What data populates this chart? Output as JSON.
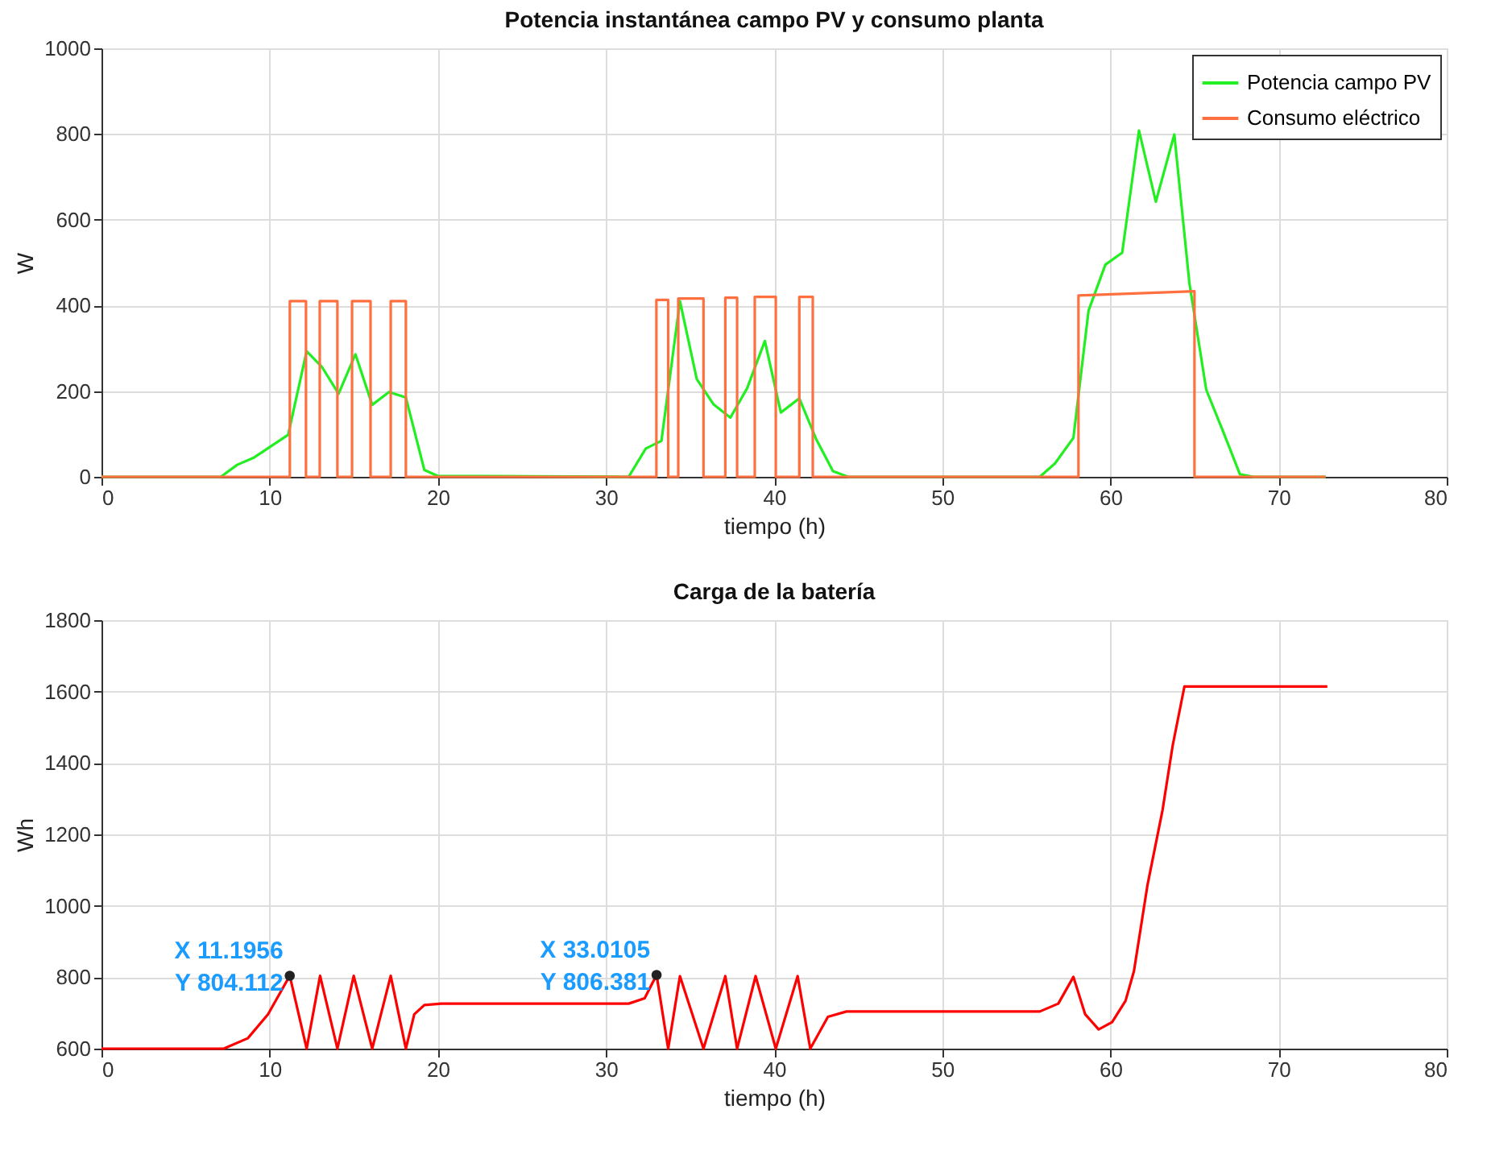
{
  "chart_data": [
    {
      "type": "line",
      "title": "Potencia instantánea campo PV y consumo planta",
      "xlabel": "tiempo (h)",
      "ylabel": "W",
      "xlim": [
        0,
        80
      ],
      "xticks": [
        0,
        10,
        20,
        30,
        40,
        50,
        60,
        70,
        80
      ],
      "ylim": [
        0,
        1000
      ],
      "yticks": [
        0,
        200,
        400,
        600,
        800,
        1000
      ],
      "grid": true,
      "legend": "top right",
      "line_style": "solid",
      "marker": "none",
      "series": [
        {
          "name": "Potencia campo PV",
          "color": "#22ee22",
          "x": [
            0,
            7.1,
            8.07,
            9.03,
            11.1,
            12.2,
            13.1,
            14.1,
            15.1,
            16.1,
            17.1,
            18.1,
            19.2,
            20.0,
            31.35,
            32.37,
            33.3,
            34.4,
            35.4,
            36.4,
            37.4,
            38.4,
            39.45,
            40.4,
            41.5,
            42.5,
            43.5,
            44.4,
            55.8,
            56.7,
            57.8,
            58.7,
            59.7,
            60.7,
            61.7,
            62.7,
            63.8,
            64.7,
            65.7,
            66.7,
            67.7,
            68.5,
            72.8
          ],
          "values": [
            0,
            0,
            28,
            44,
            98,
            293,
            257,
            194,
            286,
            168,
            198,
            185,
            16,
            2,
            0,
            66,
            84,
            410,
            228,
            169,
            138,
            207,
            317,
            150,
            183,
            88,
            13,
            0,
            0,
            31,
            91,
            388,
            495,
            523,
            808,
            642,
            799,
            451,
            203,
            106,
            6,
            0,
            0
          ]
        },
        {
          "name": "Consumo eléctrico",
          "color": "#ff7040",
          "x": [
            0,
            11.2,
            11.2,
            12.16,
            12.16,
            12.98,
            12.98,
            14.03,
            14.03,
            14.9,
            14.9,
            16.0,
            16.0,
            17.2,
            17.2,
            18.1,
            18.1,
            33.0,
            33.0,
            33.7,
            33.7,
            34.3,
            34.3,
            35.8,
            35.8,
            37.1,
            37.1,
            37.8,
            37.8,
            38.85,
            38.85,
            40.1,
            40.1,
            41.5,
            41.5,
            42.3,
            42.3,
            58.1,
            58.1,
            65.0,
            65.0,
            72.8
          ],
          "values": [
            0,
            0,
            410,
            410,
            0,
            0,
            410,
            410,
            0,
            0,
            410,
            410,
            0,
            0,
            410,
            410,
            0,
            0,
            413,
            413,
            0,
            0,
            416,
            416,
            0,
            0,
            418,
            418,
            0,
            0,
            420,
            420,
            0,
            0,
            420,
            420,
            0,
            0,
            423,
            433,
            0,
            0
          ]
        }
      ]
    },
    {
      "type": "line",
      "title": "Carga de la batería",
      "xlabel": "tiempo (h)",
      "ylabel": "Wh",
      "xlim": [
        0,
        80
      ],
      "xticks": [
        0,
        10,
        20,
        30,
        40,
        50,
        60,
        70,
        80
      ],
      "ylim": [
        600,
        1800
      ],
      "yticks": [
        600,
        800,
        1000,
        1200,
        1400,
        1600,
        1800
      ],
      "grid": true,
      "line_style": "solid",
      "marker": "none",
      "series": [
        {
          "color": "#ff0000",
          "x": [
            0,
            7.27,
            8.7,
            9.9,
            11.1956,
            12.2,
            13.0,
            14.03,
            15.0,
            16.1,
            17.2,
            18.1,
            18.6,
            19.2,
            20.2,
            31.35,
            32.3,
            33.0105,
            33.7,
            34.4,
            35.8,
            37.1,
            37.8,
            38.9,
            40.1,
            41.4,
            42.15,
            43.2,
            44.3,
            55.8,
            56.9,
            57.8,
            58.5,
            59.3,
            60.1,
            60.9,
            61.4,
            62.2,
            63.1,
            63.7,
            64.4,
            72.9
          ],
          "values": [
            600,
            600,
            629,
            696,
            804.112,
            600,
            804,
            600,
            804,
            600,
            804,
            600,
            696,
            722,
            726,
            726,
            741,
            806.381,
            600,
            803,
            600,
            803,
            600,
            803,
            600,
            803,
            600,
            689,
            704,
            704,
            726,
            801,
            696,
            654,
            674,
            734,
            817,
            1057,
            1268,
            1448,
            1614,
            1614
          ]
        }
      ],
      "annotations": [
        {
          "text": "X 11.1956\nY 804.112",
          "x": 11.1956,
          "y": 804.112
        },
        {
          "text": "X 33.0105\nY 806.381",
          "x": 33.0105,
          "y": 806.381
        }
      ]
    }
  ]
}
